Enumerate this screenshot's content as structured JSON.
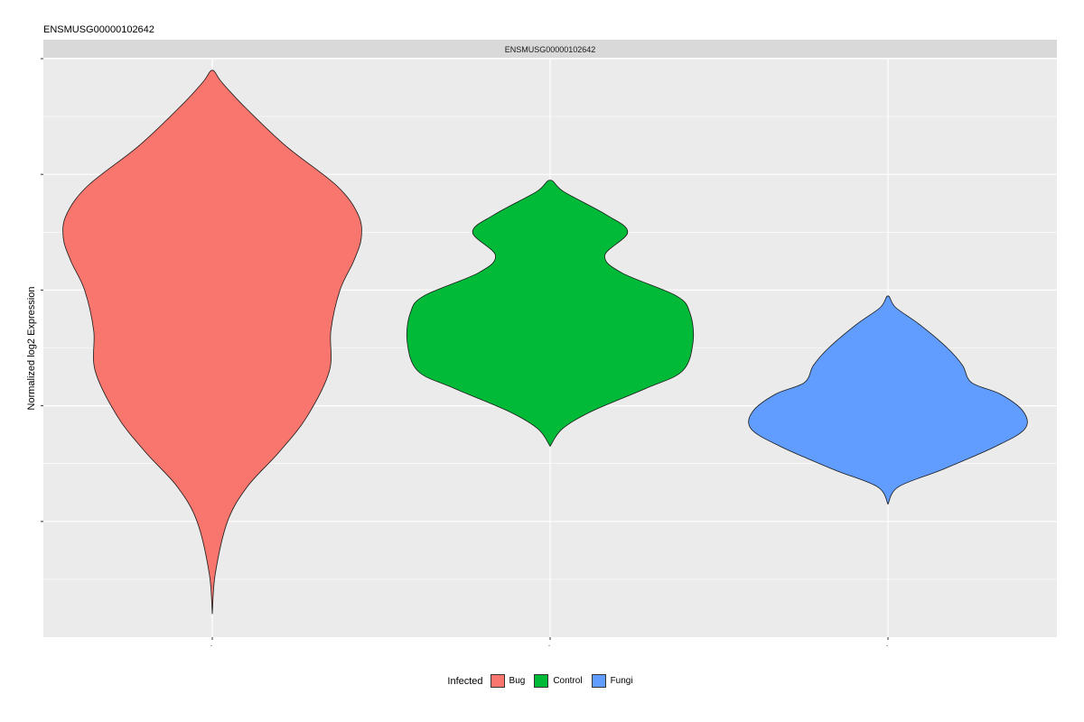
{
  "plot_title": "ENSMUSG00000102642",
  "chart_data": {
    "type": "violin",
    "title": "ENSMUSG00000102642",
    "facet_label": "ENSMUSG00000102642",
    "xlabel": "",
    "ylabel": "Normalized log2 Expression",
    "ylim": [
      0.0,
      10.0
    ],
    "y_ticks": [
      2,
      4,
      6,
      8,
      10
    ],
    "y_tick_labels": [
      "",
      "",
      "",
      "",
      ""
    ],
    "categories": [
      "Bug",
      "Control",
      "Fungi"
    ],
    "x_tick_labels": [
      "-",
      "-",
      "-"
    ],
    "grid": true,
    "legend": {
      "title": "Infected",
      "position": "bottom",
      "entries": [
        "Bug",
        "Control",
        "Fungi"
      ]
    },
    "colors": [
      "#F8766D",
      "#00BA38",
      "#619CFF"
    ],
    "series": [
      {
        "name": "Bug",
        "profile": [
          [
            0.4,
            0.0
          ],
          [
            1.1,
            0.02
          ],
          [
            2.0,
            0.1
          ],
          [
            2.6,
            0.23
          ],
          [
            3.2,
            0.44
          ],
          [
            3.8,
            0.62
          ],
          [
            4.6,
            0.77
          ],
          [
            5.3,
            0.78
          ],
          [
            6.0,
            0.84
          ],
          [
            6.5,
            0.93
          ],
          [
            6.9,
            0.98
          ],
          [
            7.3,
            0.96
          ],
          [
            7.8,
            0.82
          ],
          [
            8.5,
            0.48
          ],
          [
            9.2,
            0.2
          ],
          [
            9.6,
            0.06
          ],
          [
            9.8,
            0.0
          ]
        ]
      },
      {
        "name": "Control",
        "profile": [
          [
            3.3,
            0.0
          ],
          [
            3.6,
            0.08
          ],
          [
            3.9,
            0.27
          ],
          [
            4.3,
            0.63
          ],
          [
            4.6,
            0.87
          ],
          [
            5.1,
            0.94
          ],
          [
            5.6,
            0.92
          ],
          [
            5.9,
            0.83
          ],
          [
            6.3,
            0.47
          ],
          [
            6.6,
            0.36
          ],
          [
            7.0,
            0.51
          ],
          [
            7.3,
            0.37
          ],
          [
            7.7,
            0.09
          ],
          [
            7.9,
            0.0
          ]
        ]
      },
      {
        "name": "Fungi",
        "profile": [
          [
            2.3,
            0.0
          ],
          [
            2.6,
            0.07
          ],
          [
            2.9,
            0.36
          ],
          [
            3.3,
            0.71
          ],
          [
            3.6,
            0.9
          ],
          [
            3.9,
            0.89
          ],
          [
            4.2,
            0.74
          ],
          [
            4.4,
            0.55
          ],
          [
            4.7,
            0.49
          ],
          [
            5.0,
            0.39
          ],
          [
            5.4,
            0.21
          ],
          [
            5.7,
            0.05
          ],
          [
            5.9,
            0.0
          ]
        ]
      }
    ]
  }
}
